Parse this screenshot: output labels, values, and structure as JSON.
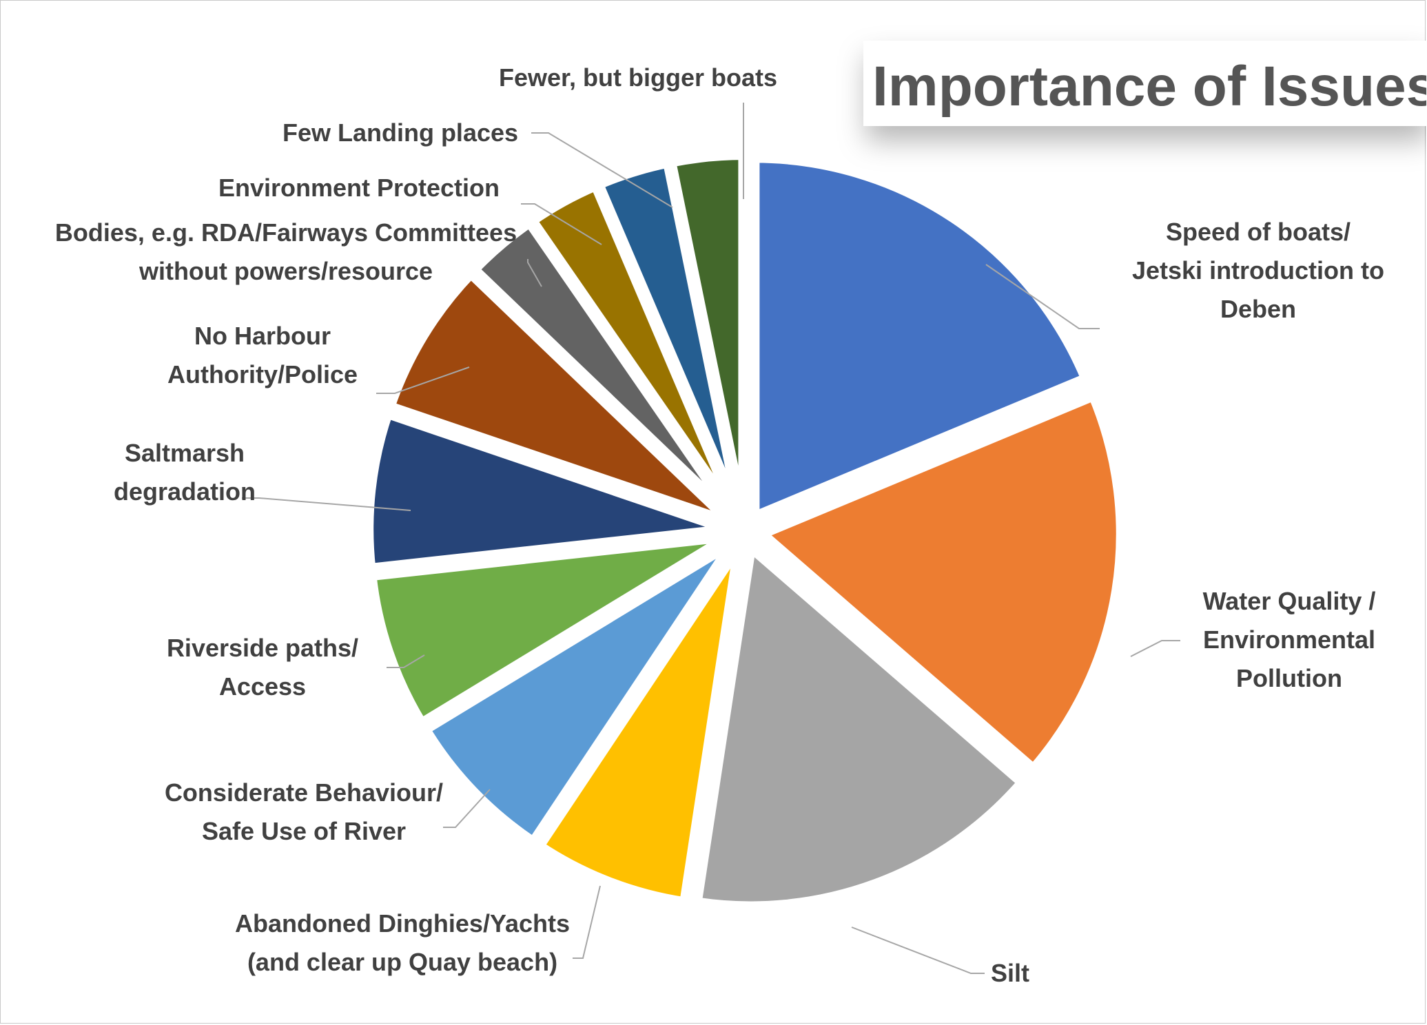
{
  "chart_data": {
    "type": "pie",
    "title": "Importance of Issues",
    "slices": [
      {
        "label": [
          "Speed of boats/",
          "Jetski introduction to",
          "Deben"
        ],
        "value": 17.5,
        "color": "#4472C4"
      },
      {
        "label": [
          "Water Quality /",
          "Environmental",
          "Pollution"
        ],
        "value": 16.5,
        "color": "#ED7D31"
      },
      {
        "label": [
          "Silt"
        ],
        "value": 15.0,
        "color": "#A5A5A5"
      },
      {
        "label": [
          "Abandoned Dinghies/Yachts",
          "(and clear up Quay beach)"
        ],
        "value": 6.5,
        "color": "#FFC000"
      },
      {
        "label": [
          "Considerate Behaviour/",
          "Safe Use of River"
        ],
        "value": 6.5,
        "color": "#5B9BD5"
      },
      {
        "label": [
          "Riverside paths/",
          "Access"
        ],
        "value": 6.5,
        "color": "#70AD47"
      },
      {
        "label": [
          "Saltmarsh",
          "degradation"
        ],
        "value": 6.5,
        "color": "#264478"
      },
      {
        "label": [
          "No Harbour",
          "Authority/Police"
        ],
        "value": 6.5,
        "color": "#9E480E"
      },
      {
        "label": [
          "Bodies, e.g. RDA/Fairways Committees",
          "without powers/resource"
        ],
        "value": 3.0,
        "color": "#636363"
      },
      {
        "label": [
          "Environment Protection"
        ],
        "value": 3.0,
        "color": "#997300"
      },
      {
        "label": [
          "Few Landing places"
        ],
        "value": 3.0,
        "color": "#255E91"
      },
      {
        "label": [
          "Fewer, but bigger boats"
        ],
        "value": 3.0,
        "color": "#43682B"
      }
    ],
    "legend": "none"
  }
}
